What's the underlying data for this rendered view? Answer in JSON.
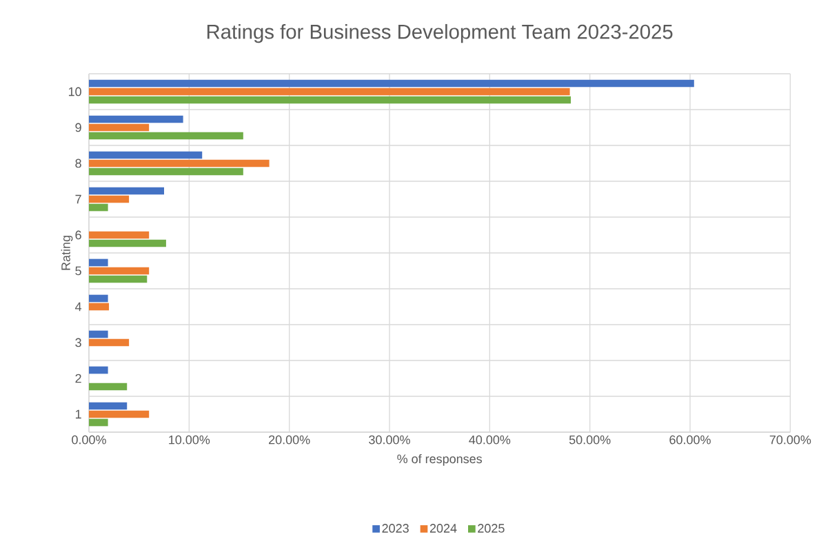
{
  "chart_data": {
    "type": "bar",
    "orientation": "horizontal",
    "title": "Ratings for Business Development Team 2023-2025",
    "xlabel": "% of responses",
    "ylabel": "Rating",
    "categories": [
      "10",
      "9",
      "8",
      "7",
      "6",
      "5",
      "4",
      "3",
      "2",
      "1"
    ],
    "series": [
      {
        "name": "2023",
        "color": "#4472c4",
        "values": [
          60.4,
          9.4,
          11.3,
          7.5,
          null,
          1.9,
          1.9,
          1.9,
          1.9,
          3.8
        ]
      },
      {
        "name": "2024",
        "color": "#ed7d31",
        "values": [
          48.0,
          6.0,
          18.0,
          4.0,
          6.0,
          6.0,
          2.0,
          4.0,
          null,
          6.0
        ]
      },
      {
        "name": "2025",
        "color": "#70ad47",
        "values": [
          48.1,
          15.4,
          15.4,
          1.9,
          7.7,
          5.8,
          null,
          null,
          3.8,
          1.9
        ]
      }
    ],
    "xlim": [
      0,
      70
    ],
    "xticks": [
      {
        "value": 0,
        "label": "0.00%"
      },
      {
        "value": 10,
        "label": "10.00%"
      },
      {
        "value": 20,
        "label": "20.00%"
      },
      {
        "value": 30,
        "label": "30.00%"
      },
      {
        "value": 40,
        "label": "40.00%"
      },
      {
        "value": 50,
        "label": "50.00%"
      },
      {
        "value": 60,
        "label": "60.00%"
      },
      {
        "value": 70,
        "label": "70.00%"
      }
    ],
    "grid": true,
    "legend": "bottom"
  }
}
